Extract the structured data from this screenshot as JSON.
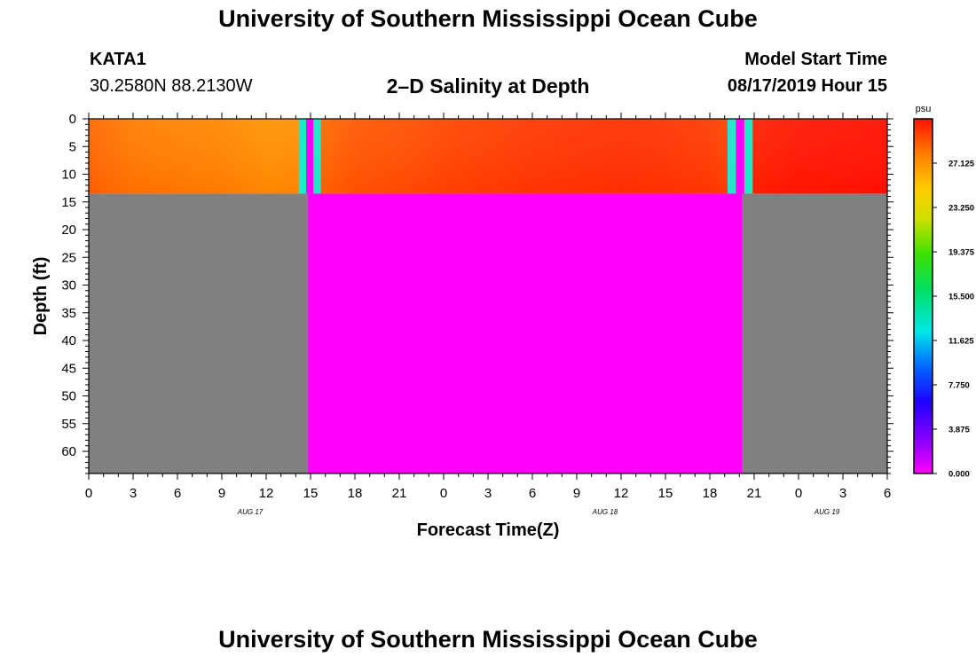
{
  "header": {
    "top_title": "University of Southern Mississippi Ocean Cube",
    "station_id": "KATA1",
    "station_coords": "30.2580N 88.2130W",
    "plot_title": "2–D Salinity at Depth",
    "start_label": "Model Start Time",
    "start_value": "08/17/2019 Hour 15"
  },
  "footer": {
    "bottom_title": "University of Southern Mississippi Ocean Cube"
  },
  "chart_data": {
    "type": "heatmap",
    "title": "2–D Salinity at Depth",
    "xlabel": "Forecast Time(Z)",
    "ylabel": "Depth (ft)",
    "x_range_hours": [
      0,
      54
    ],
    "x_tick_labels": [
      "0",
      "3",
      "6",
      "9",
      "12",
      "15",
      "18",
      "21",
      "0",
      "3",
      "6",
      "9",
      "12",
      "15",
      "18",
      "21",
      "0",
      "3",
      "6"
    ],
    "date_labels": [
      {
        "text": "AUG 17",
        "hour": 12
      },
      {
        "text": "AUG 18",
        "hour": 36
      },
      {
        "text": "AUG 19",
        "hour": 51
      }
    ],
    "y_range": [
      0,
      64
    ],
    "y_reversed": true,
    "y_ticks": [
      0,
      5,
      10,
      15,
      20,
      25,
      30,
      35,
      40,
      45,
      50,
      55,
      60
    ],
    "colorbar": {
      "unit": "psu",
      "min": 0,
      "max": 31,
      "tick_labels": [
        "0.000",
        "3.875",
        "7.750",
        "11.625",
        "15.500",
        "19.375",
        "23.250",
        "27.125"
      ],
      "tick_values": [
        0,
        3.875,
        7.75,
        11.625,
        15.5,
        19.375,
        23.25,
        27.125
      ]
    },
    "colors": {
      "land": "#808080",
      "no_data": "#ff00ff",
      "gap_cyan": "#20e8c8"
    },
    "water_depth_ft": 13.5,
    "surface_salinity": {
      "hours": [
        0,
        3,
        6,
        9,
        12,
        14.5,
        15.5,
        18,
        21,
        24,
        27,
        30,
        33,
        36,
        39,
        42,
        43.5,
        44.5,
        48,
        51,
        54
      ],
      "values": [
        28.6,
        28.0,
        27.8,
        27.6,
        27.1,
        27.2,
        28.5,
        29.0,
        29.2,
        29.5,
        29.7,
        29.9,
        30.0,
        30.1,
        30.0,
        29.8,
        29.5,
        30.5,
        30.8,
        30.9,
        31.0
      ]
    },
    "gaps": [
      {
        "start_hour": 14.2,
        "end_hour": 15.7
      },
      {
        "start_hour": 43.2,
        "end_hour": 44.9
      }
    ],
    "land_segments": [
      {
        "start_hour": 0,
        "end_hour": 14.8
      },
      {
        "start_hour": 44.2,
        "end_hour": 54
      }
    ],
    "no_data_segment": {
      "start_hour": 14.8,
      "end_hour": 44.2
    }
  }
}
